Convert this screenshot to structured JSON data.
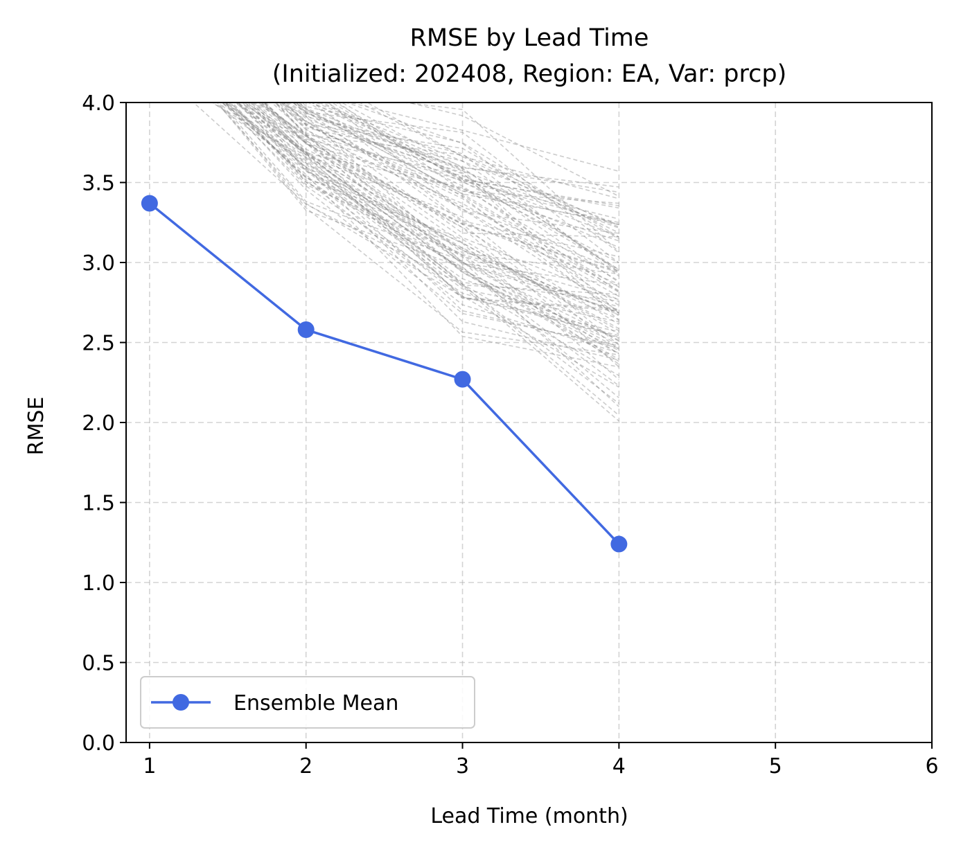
{
  "chart_data": {
    "type": "line",
    "title": "RMSE by Lead Time",
    "subtitle": "(Initialized: 202408, Region: EA, Var: prcp)",
    "xlabel": "Lead Time (month)",
    "ylabel": "RMSE",
    "xlim": [
      0.85,
      6
    ],
    "ylim": [
      0,
      4
    ],
    "xticks": [
      "1",
      "2",
      "3",
      "4",
      "5",
      "6"
    ],
    "yticks": [
      "0.0",
      "0.5",
      "1.0",
      "1.5",
      "2.0",
      "2.5",
      "3.0",
      "3.5",
      "4.0"
    ],
    "grid": true,
    "legend_position": "lower-left",
    "series": [
      {
        "name": "Ensemble Mean",
        "color": "#4169e1",
        "marker": "circle",
        "x": [
          1,
          2,
          3,
          4
        ],
        "y": [
          3.37,
          2.58,
          2.27,
          1.24
        ]
      }
    ],
    "member_lines": {
      "color": "#808080",
      "style": "dashed",
      "x": [
        1,
        2,
        3,
        4
      ],
      "count": 100,
      "approx_range_by_lead": [
        [
          4.2,
          5.2
        ],
        [
          3.3,
          4.3
        ],
        [
          2.5,
          4.0
        ],
        [
          1.95,
          3.65
        ]
      ]
    }
  }
}
